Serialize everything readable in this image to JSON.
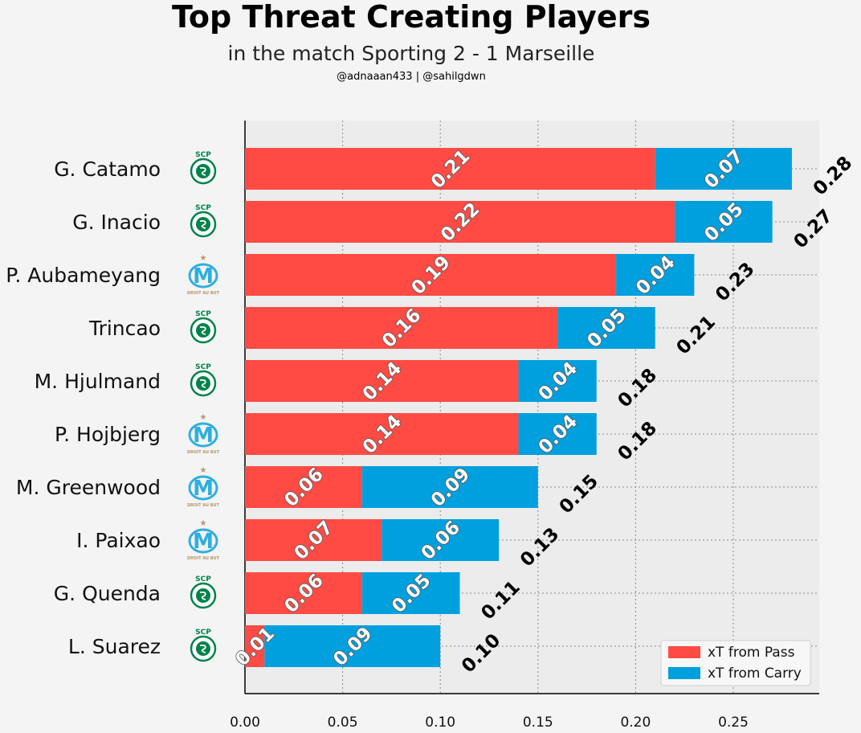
{
  "title": "Top Threat Creating Players",
  "subtitle": "in the match Sporting 2 - 1 Marseille",
  "credit": "@adnaaan433  | @sahilgdwn",
  "colors": {
    "pass": "#ff4b44",
    "carry": "#00a0de",
    "plot_bg": "#ececec",
    "page_bg": "#f4f4f4",
    "sporting_green": "#00834a",
    "marseille_blue": "#2faee0",
    "marseille_gold": "#b8976a"
  },
  "chart_data": {
    "type": "bar",
    "orientation": "horizontal",
    "stacked": true,
    "categories": [
      "G. Catamo",
      "G. Inacio",
      "P. Aubameyang",
      "Trincao",
      "M. Hjulmand",
      "P. Hojbjerg",
      "M. Greenwood",
      "I. Paixao",
      "G. Quenda",
      "L. Suarez"
    ],
    "teams": [
      "Sporting",
      "Sporting",
      "Marseille",
      "Sporting",
      "Sporting",
      "Marseille",
      "Marseille",
      "Marseille",
      "Sporting",
      "Sporting"
    ],
    "series": [
      {
        "name": "xT from Pass",
        "color": "#ff4b44",
        "values": [
          0.21,
          0.22,
          0.19,
          0.16,
          0.14,
          0.14,
          0.06,
          0.07,
          0.06,
          0.01
        ],
        "labels": [
          "0.21",
          "0.22",
          "0.19",
          "0.16",
          "0.14",
          "0.14",
          "0.06",
          "0.07",
          "0.06",
          "0.01"
        ]
      },
      {
        "name": "xT from Carry",
        "color": "#00a0de",
        "values": [
          0.07,
          0.05,
          0.04,
          0.05,
          0.04,
          0.04,
          0.09,
          0.06,
          0.05,
          0.09
        ],
        "labels": [
          "0.07",
          "0.05",
          "0.04",
          "0.05",
          "0.04",
          "0.04",
          "0.09",
          "0.06",
          "0.05",
          "0.09"
        ]
      }
    ],
    "totals": [
      "0.28",
      "0.27",
      "0.23",
      "0.21",
      "0.18",
      "0.18",
      "0.15",
      "0.13",
      "0.11",
      "0.10"
    ],
    "xlim": [
      0,
      0.294
    ],
    "xticks": [
      "0.00",
      "0.05",
      "0.10",
      "0.15",
      "0.20",
      "0.25"
    ],
    "xtick_values": [
      0,
      0.05,
      0.1,
      0.15,
      0.2,
      0.25
    ],
    "grid": true,
    "legend_position": "bottom-right",
    "xlabel": "",
    "ylabel": ""
  },
  "logos": {
    "sporting": {
      "top": "SCP",
      "ring": "SPORTING",
      "bottom": "PORTUGAL"
    },
    "marseille": {
      "mono": "M",
      "motto": "DROIT AU BUT"
    }
  }
}
